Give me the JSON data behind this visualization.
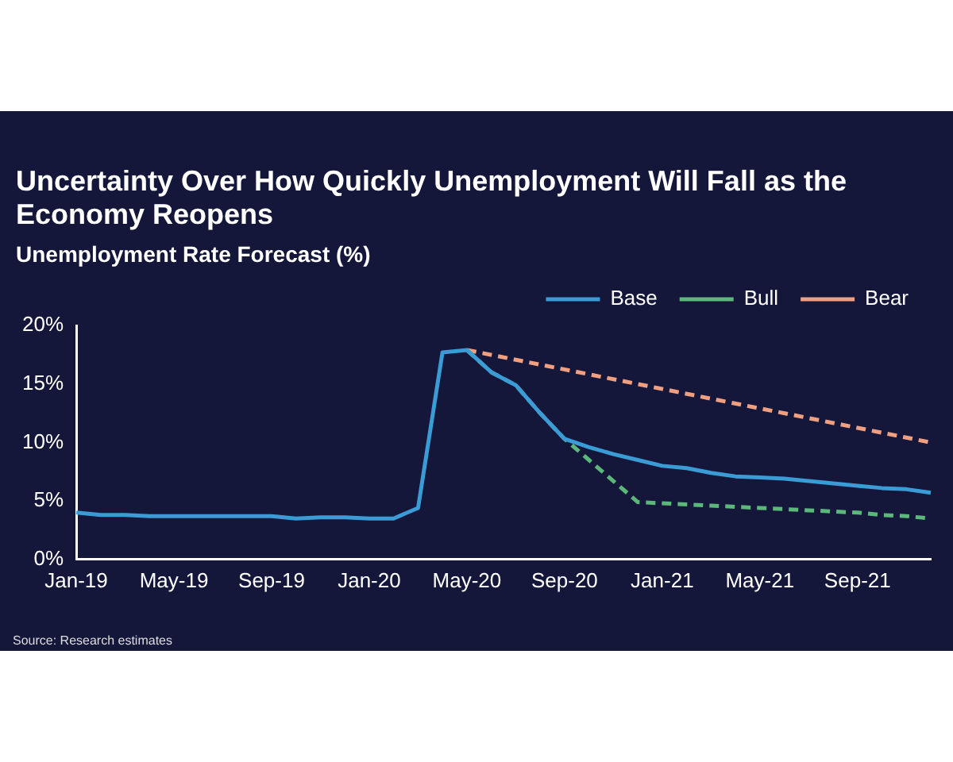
{
  "chart_data": {
    "type": "line",
    "title": "Uncertainty Over How Quickly Unemployment Will Fall as the Economy Reopens",
    "subtitle": "Unemployment Rate Forecast (%)",
    "categories": [
      "Jan-19",
      null,
      null,
      null,
      "May-19",
      null,
      null,
      null,
      "Sep-19",
      null,
      null,
      null,
      "Jan-20",
      null,
      null,
      null,
      "May-20",
      null,
      null,
      null,
      "Sep-20",
      null,
      null,
      null,
      "Jan-21",
      null,
      null,
      null,
      "May-21",
      null,
      null,
      null,
      "Sep-21",
      null,
      null,
      null
    ],
    "series": [
      {
        "name": "Base",
        "color": "#3a9bd5",
        "line_style": "solid",
        "values": [
          4.0,
          3.8,
          3.8,
          3.7,
          3.7,
          3.7,
          3.7,
          3.7,
          3.7,
          3.5,
          3.6,
          3.6,
          3.5,
          3.5,
          4.4,
          17.7,
          17.9,
          16.0,
          14.9,
          12.5,
          10.3,
          9.6,
          9.0,
          8.5,
          8.0,
          7.8,
          7.4,
          7.1,
          7.0,
          6.9,
          6.7,
          6.5,
          6.3,
          6.1,
          6.0,
          5.7
        ]
      },
      {
        "name": "Bull",
        "color": "#5cb87a",
        "line_style": "dashed",
        "values": [
          null,
          null,
          null,
          null,
          null,
          null,
          null,
          null,
          null,
          null,
          null,
          null,
          null,
          null,
          null,
          null,
          17.9,
          16.0,
          14.9,
          12.5,
          10.3,
          8.5,
          6.7,
          4.9,
          4.8,
          4.7,
          4.6,
          4.5,
          4.4,
          4.3,
          4.2,
          4.1,
          4.0,
          3.8,
          3.7,
          3.5
        ]
      },
      {
        "name": "Bear",
        "color": "#f0a080",
        "line_style": "dashed",
        "values": [
          null,
          null,
          null,
          null,
          null,
          null,
          null,
          null,
          null,
          null,
          null,
          null,
          null,
          null,
          null,
          null,
          17.9,
          null,
          null,
          null,
          null,
          null,
          null,
          null,
          null,
          null,
          null,
          null,
          null,
          null,
          null,
          null,
          null,
          null,
          null,
          10.0
        ]
      }
    ],
    "ylim": [
      0,
      20
    ],
    "yticks": [
      {
        "value": 0,
        "label": "0%"
      },
      {
        "value": 5,
        "label": "5%"
      },
      {
        "value": 10,
        "label": "10%"
      },
      {
        "value": 15,
        "label": "15%"
      },
      {
        "value": 20,
        "label": "20%"
      }
    ],
    "grid": false,
    "legend": "top right",
    "marker": "none",
    "annotations": [
      "Source: Research estimates"
    ]
  }
}
